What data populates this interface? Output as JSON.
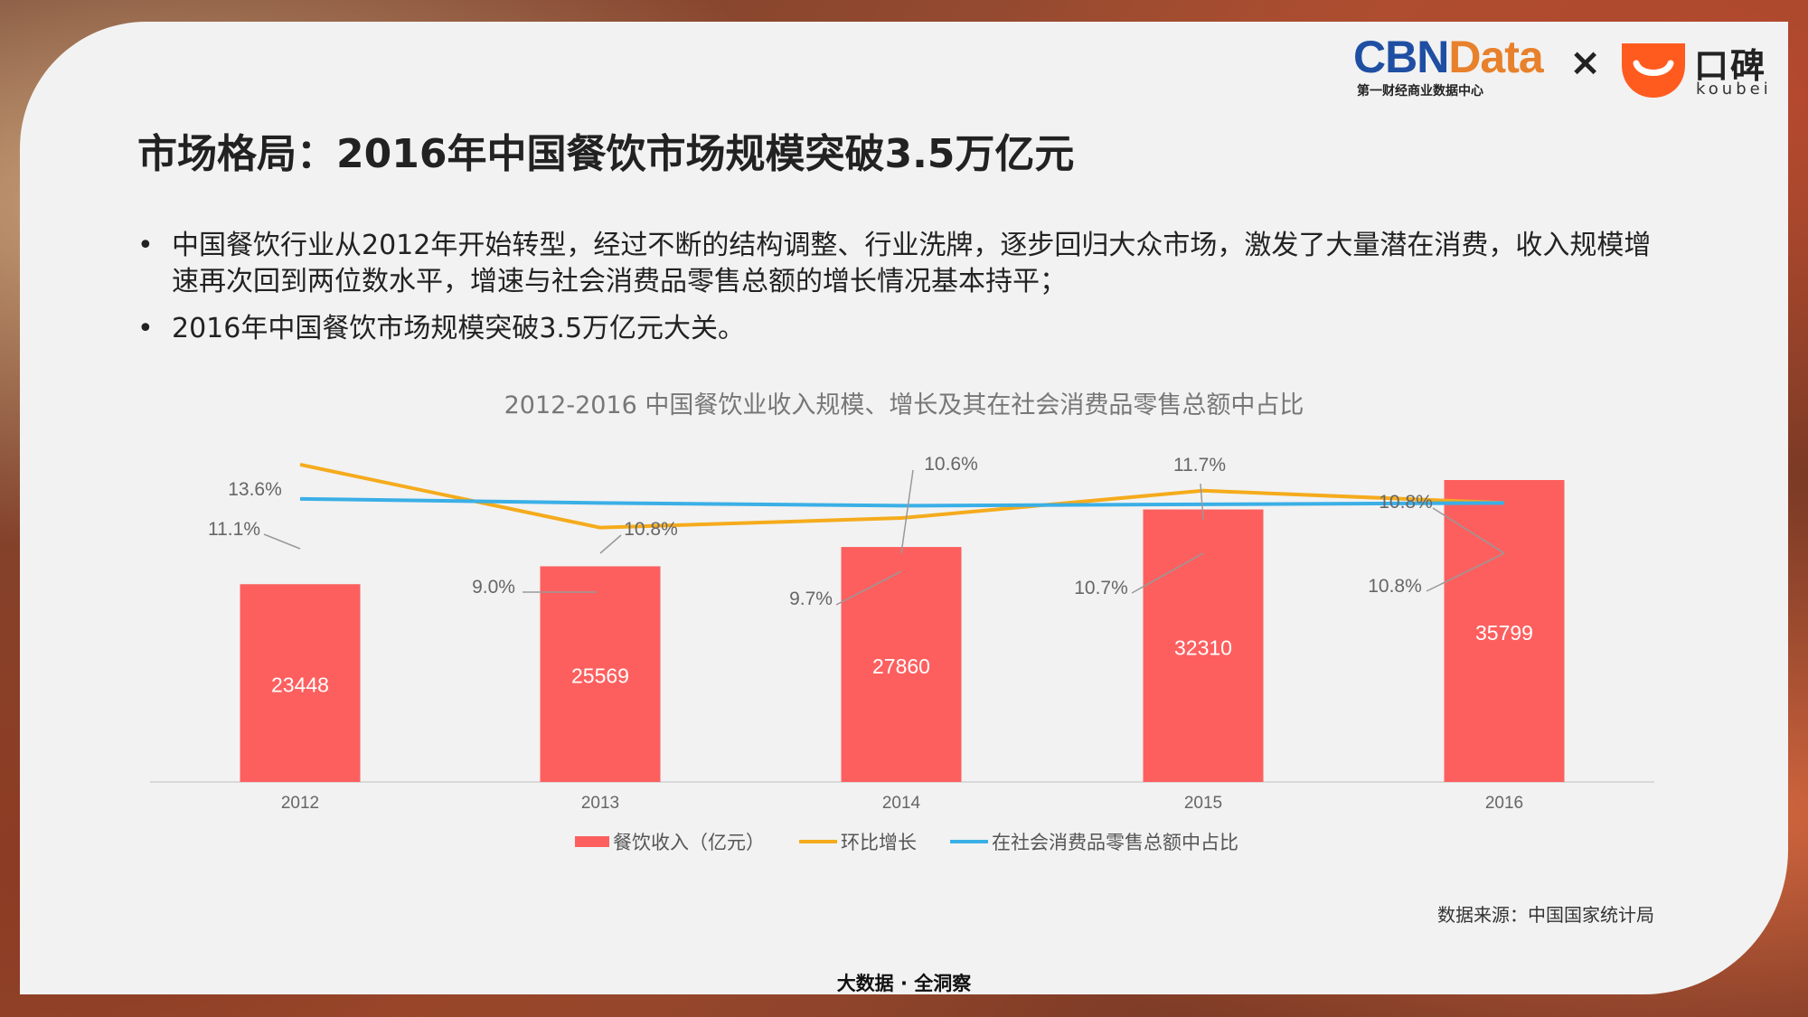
{
  "header": {
    "cbn_logo": {
      "cbn": "CBN",
      "data": "Data",
      "subtitle": "第一财经商业数据中心"
    },
    "separator": "×",
    "koubei_logo": {
      "cn": "口碑",
      "en": "koubei"
    }
  },
  "title": "市场格局：2016年中国餐饮市场规模突破3.5万亿元",
  "bullets": [
    "中国餐饮行业从2012年开始转型，经过不断的结构调整、行业洗牌，逐步回归大众市场，激发了大量潜在消费，收入规模增速再次回到两位数水平，增速与社会消费品零售总额的增长情况基本持平；",
    "2016年中国餐饮市场规模突破3.5万亿元大关。"
  ],
  "bullet_symbol": "•",
  "chart_data": {
    "type": "bar",
    "title": "2012-2016  中国餐饮业收入规模、增长及其在社会消费品零售总额中占比",
    "categories": [
      "2012",
      "2013",
      "2014",
      "2015",
      "2016"
    ],
    "series": [
      {
        "name": "餐饮收入（亿元）",
        "type": "bar",
        "values": [
          23448,
          25569,
          27860,
          32310,
          35799
        ],
        "color": "#fd5f5f"
      },
      {
        "name": "环比增长",
        "type": "line",
        "values": [
          13.6,
          9.0,
          9.7,
          11.7,
          10.8
        ],
        "labels": [
          "13.6%",
          "9.0%",
          "9.7%",
          "11.7%",
          "10.8%"
        ],
        "color": "#f5ab1c"
      },
      {
        "name": "在社会消费品零售总额中占比",
        "type": "line",
        "values": [
          11.1,
          10.8,
          10.6,
          10.7,
          10.8
        ],
        "labels": [
          "11.1%",
          "10.8%",
          "10.6%",
          "10.7%",
          "10.8%"
        ],
        "color": "#3aafe6"
      }
    ],
    "ylim_bar": [
      0,
      40000
    ],
    "legend_position": "bottom",
    "grid": false
  },
  "source": "数据来源：中国国家统计局",
  "footer": "大数据 · 全洞察",
  "colors": {
    "card_bg": "#f2f2f2",
    "bar": "#fd5f5f",
    "growth_line": "#f5ab1c",
    "share_line": "#3aafe6",
    "axis": "#d9d9d9",
    "leader": "#999999"
  }
}
